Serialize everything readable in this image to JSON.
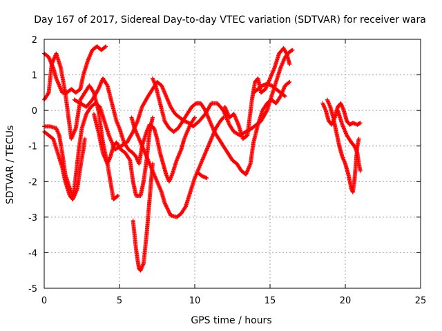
{
  "chart_data": {
    "type": "scatter",
    "title": "Day 167 of 2017, Sidereal Day-to-day VTEC variation (SDTVAR) for receiver wara",
    "xlabel": "GPS time / hours",
    "ylabel": "SDTVAR / TECUs",
    "xlim": [
      0,
      25
    ],
    "ylim": [
      -5,
      2
    ],
    "xticks": [
      "0",
      "5",
      "10",
      "15",
      "20",
      "25"
    ],
    "yticks": [
      "-5",
      "-4",
      "-3",
      "-2",
      "-1",
      "0",
      "1",
      "2"
    ],
    "grid": true,
    "marker": "plus",
    "color": "#ff0000",
    "series": [
      {
        "points": [
          [
            0.0,
            1.6
          ],
          [
            0.3,
            1.5
          ],
          [
            0.6,
            1.2
          ],
          [
            0.8,
            0.9
          ],
          [
            1.0,
            0.7
          ],
          [
            1.2,
            0.5
          ],
          [
            1.5,
            0.5
          ],
          [
            1.8,
            0.6
          ],
          [
            2.1,
            0.5
          ],
          [
            2.4,
            0.6
          ],
          [
            2.6,
            1.0
          ],
          [
            2.9,
            1.4
          ],
          [
            3.2,
            1.7
          ],
          [
            3.5,
            1.8
          ],
          [
            3.8,
            1.7
          ],
          [
            4.1,
            1.8
          ]
        ]
      },
      {
        "points": [
          [
            0.0,
            0.3
          ],
          [
            0.3,
            0.5
          ],
          [
            0.5,
            1.3
          ],
          [
            0.8,
            1.6
          ],
          [
            1.1,
            1.2
          ],
          [
            1.4,
            0.5
          ],
          [
            1.8,
            -0.8
          ],
          [
            2.1,
            -0.5
          ],
          [
            2.4,
            0.3
          ],
          [
            2.7,
            0.5
          ],
          [
            3.0,
            0.7
          ],
          [
            3.3,
            0.5
          ],
          [
            3.6,
            0.0
          ],
          [
            3.9,
            -0.9
          ],
          [
            4.2,
            -1.5
          ],
          [
            4.4,
            -2.0
          ],
          [
            4.6,
            -2.5
          ],
          [
            4.9,
            -2.4
          ]
        ]
      },
      {
        "points": [
          [
            0.0,
            -0.6
          ],
          [
            0.3,
            -0.7
          ],
          [
            0.6,
            -0.8
          ],
          [
            0.9,
            -1.2
          ],
          [
            1.2,
            -1.6
          ],
          [
            1.4,
            -2.0
          ],
          [
            1.7,
            -2.4
          ],
          [
            1.9,
            -2.5
          ],
          [
            2.2,
            -2.2
          ],
          [
            2.4,
            -1.6
          ],
          [
            2.6,
            -1.1
          ],
          [
            2.7,
            -0.8
          ]
        ]
      },
      {
        "points": [
          [
            0.0,
            -0.45
          ],
          [
            0.4,
            -0.45
          ],
          [
            0.8,
            -0.5
          ],
          [
            1.0,
            -0.7
          ],
          [
            1.2,
            -1.2
          ],
          [
            1.4,
            -1.8
          ],
          [
            1.7,
            -2.2
          ],
          [
            1.9,
            -2.4
          ],
          [
            2.0,
            -2.2
          ],
          [
            2.3,
            -1.1
          ],
          [
            2.5,
            -0.5
          ],
          [
            2.8,
            -0.1
          ],
          [
            3.1,
            0.1
          ],
          [
            3.4,
            0.2
          ],
          [
            3.7,
            0.1
          ],
          [
            4.0,
            -0.3
          ],
          [
            4.3,
            -0.7
          ],
          [
            4.7,
            -1.1
          ],
          [
            5.1,
            -1.0
          ],
          [
            5.5,
            -0.9
          ],
          [
            5.9,
            -0.6
          ],
          [
            6.2,
            -0.3
          ],
          [
            6.5,
            0.1
          ],
          [
            6.9,
            0.4
          ],
          [
            7.2,
            0.6
          ],
          [
            7.5,
            0.8
          ],
          [
            7.8,
            0.7
          ],
          [
            8.1,
            0.4
          ],
          [
            8.4,
            0.1
          ],
          [
            8.7,
            -0.1
          ],
          [
            9.0,
            -0.2
          ],
          [
            9.3,
            -0.3
          ],
          [
            9.6,
            -0.35
          ],
          [
            9.9,
            -0.45
          ],
          [
            10.3,
            -0.3
          ],
          [
            10.7,
            -0.1
          ],
          [
            11.1,
            0.2
          ],
          [
            11.5,
            0.2
          ],
          [
            11.9,
            0.0
          ],
          [
            12.3,
            -0.4
          ],
          [
            12.6,
            -0.6
          ],
          [
            13.0,
            -0.7
          ],
          [
            13.4,
            -0.6
          ],
          [
            13.8,
            -0.5
          ],
          [
            14.1,
            -0.4
          ],
          [
            14.4,
            -0.3
          ],
          [
            14.8,
            0.0
          ],
          [
            15.1,
            0.4
          ],
          [
            15.4,
            0.8
          ],
          [
            15.7,
            1.2
          ],
          [
            16.0,
            1.5
          ],
          [
            16.3,
            1.65
          ],
          [
            16.5,
            1.7
          ]
        ]
      },
      {
        "points": [
          [
            2.0,
            0.3
          ],
          [
            2.4,
            0.2
          ],
          [
            2.8,
            0.1
          ],
          [
            3.2,
            0.3
          ],
          [
            3.6,
            0.6
          ],
          [
            3.9,
            0.9
          ],
          [
            4.2,
            0.7
          ],
          [
            4.5,
            0.2
          ],
          [
            4.8,
            -0.3
          ],
          [
            5.0,
            -0.5
          ],
          [
            5.3,
            -0.9
          ],
          [
            5.6,
            -1.1
          ],
          [
            5.9,
            -1.2
          ],
          [
            6.1,
            -1.3
          ],
          [
            6.3,
            -1.5
          ],
          [
            6.5,
            -1.0
          ],
          [
            6.8,
            -0.6
          ],
          [
            7.0,
            -0.4
          ],
          [
            7.3,
            -0.5
          ],
          [
            7.5,
            -0.8
          ],
          [
            7.7,
            -1.2
          ],
          [
            7.9,
            -1.5
          ],
          [
            8.1,
            -1.8
          ],
          [
            8.3,
            -2.0
          ],
          [
            8.5,
            -1.8
          ],
          [
            8.8,
            -1.4
          ],
          [
            9.1,
            -1.1
          ],
          [
            9.3,
            -0.8
          ],
          [
            9.7,
            -0.4
          ],
          [
            10.0,
            -0.2
          ]
        ]
      },
      {
        "points": [
          [
            3.3,
            -0.1
          ],
          [
            3.6,
            -0.6
          ],
          [
            3.9,
            -1.2
          ],
          [
            4.2,
            -1.5
          ],
          [
            4.4,
            -1.3
          ],
          [
            4.6,
            -1.0
          ],
          [
            4.8,
            -0.9
          ],
          [
            5.1,
            -1.1
          ],
          [
            5.4,
            -1.2
          ],
          [
            5.7,
            -1.4
          ],
          [
            5.9,
            -2.0
          ],
          [
            6.1,
            -2.4
          ],
          [
            6.4,
            -2.4
          ],
          [
            6.6,
            -2.0
          ],
          [
            6.8,
            -1.4
          ],
          [
            7.0,
            -0.6
          ],
          [
            7.2,
            -0.2
          ]
        ]
      },
      {
        "points": [
          [
            5.8,
            -0.2
          ],
          [
            6.0,
            -0.5
          ],
          [
            6.2,
            -0.7
          ],
          [
            6.4,
            -0.9
          ],
          [
            6.6,
            -1.1
          ],
          [
            6.8,
            -1.3
          ],
          [
            7.0,
            -1.5
          ],
          [
            7.2,
            -1.7
          ],
          [
            7.4,
            -1.9
          ],
          [
            7.6,
            -2.1
          ],
          [
            7.8,
            -2.3
          ],
          [
            8.0,
            -2.6
          ],
          [
            8.4,
            -2.95
          ],
          [
            8.8,
            -3.0
          ],
          [
            9.1,
            -2.9
          ],
          [
            9.4,
            -2.7
          ],
          [
            9.7,
            -2.3
          ],
          [
            10.0,
            -1.9
          ],
          [
            10.4,
            -1.5
          ],
          [
            10.8,
            -1.1
          ],
          [
            11.1,
            -0.8
          ],
          [
            11.4,
            -0.5
          ],
          [
            11.7,
            -0.3
          ],
          [
            11.9,
            -0.2
          ]
        ]
      },
      {
        "points": [
          [
            5.9,
            -3.1
          ],
          [
            6.0,
            -3.5
          ],
          [
            6.1,
            -3.9
          ],
          [
            6.2,
            -4.2
          ],
          [
            6.3,
            -4.45
          ],
          [
            6.4,
            -4.5
          ],
          [
            6.6,
            -4.3
          ],
          [
            6.7,
            -3.9
          ],
          [
            6.8,
            -3.5
          ],
          [
            6.9,
            -3.0
          ],
          [
            7.0,
            -2.5
          ],
          [
            7.1,
            -2.0
          ],
          [
            7.2,
            -1.5
          ]
        ]
      },
      {
        "points": [
          [
            7.2,
            0.9
          ],
          [
            7.4,
            0.7
          ],
          [
            7.7,
            0.2
          ],
          [
            8.0,
            -0.3
          ],
          [
            8.3,
            -0.5
          ],
          [
            8.6,
            -0.6
          ],
          [
            8.9,
            -0.5
          ],
          [
            9.2,
            -0.3
          ],
          [
            9.5,
            -0.1
          ],
          [
            9.8,
            0.1
          ],
          [
            10.1,
            0.2
          ],
          [
            10.4,
            0.2
          ],
          [
            10.7,
            0.0
          ],
          [
            11.0,
            -0.3
          ],
          [
            11.3,
            -0.6
          ],
          [
            11.6,
            -0.8
          ],
          [
            11.9,
            -1.0
          ],
          [
            12.2,
            -1.2
          ],
          [
            12.5,
            -1.4
          ],
          [
            12.8,
            -1.5
          ],
          [
            13.1,
            -1.7
          ],
          [
            13.4,
            -1.8
          ],
          [
            13.7,
            -1.5
          ],
          [
            13.9,
            -0.9
          ],
          [
            14.2,
            -0.4
          ],
          [
            14.5,
            0.0
          ],
          [
            14.8,
            0.2
          ],
          [
            15.1,
            0.3
          ],
          [
            15.4,
            0.2
          ],
          [
            15.7,
            0.4
          ],
          [
            16.0,
            0.7
          ],
          [
            16.3,
            0.8
          ]
        ]
      },
      {
        "points": [
          [
            10.2,
            -1.75
          ],
          [
            10.5,
            -1.85
          ],
          [
            10.8,
            -1.9
          ]
        ]
      },
      {
        "points": [
          [
            12.0,
            0.1
          ],
          [
            12.3,
            -0.2
          ],
          [
            12.6,
            -0.1
          ],
          [
            12.9,
            -0.4
          ],
          [
            13.2,
            -0.8
          ],
          [
            13.5,
            -0.7
          ],
          [
            13.8,
            0.3
          ],
          [
            14.0,
            0.8
          ],
          [
            14.2,
            0.9
          ],
          [
            14.4,
            0.5
          ],
          [
            14.7,
            0.6
          ],
          [
            15.0,
            0.9
          ],
          [
            15.3,
            1.2
          ],
          [
            15.6,
            1.6
          ],
          [
            15.9,
            1.75
          ],
          [
            16.1,
            1.6
          ],
          [
            16.3,
            1.3
          ]
        ]
      },
      {
        "points": [
          [
            13.9,
            0.5
          ],
          [
            14.2,
            0.6
          ],
          [
            14.5,
            0.7
          ],
          [
            14.8,
            0.75
          ],
          [
            15.1,
            0.7
          ],
          [
            15.4,
            0.6
          ],
          [
            15.7,
            0.5
          ],
          [
            16.0,
            0.4
          ]
        ]
      },
      {
        "points": [
          [
            18.5,
            0.2
          ],
          [
            18.7,
            0.0
          ],
          [
            18.9,
            -0.3
          ],
          [
            19.1,
            -0.4
          ],
          [
            19.3,
            -0.2
          ],
          [
            19.5,
            0.1
          ],
          [
            19.7,
            0.2
          ],
          [
            19.9,
            0.0
          ],
          [
            20.1,
            -0.3
          ],
          [
            20.3,
            -0.4
          ],
          [
            20.5,
            -0.35
          ],
          [
            20.8,
            -0.4
          ],
          [
            21.0,
            -0.35
          ]
        ]
      },
      {
        "points": [
          [
            18.8,
            0.3
          ],
          [
            19.0,
            0.1
          ],
          [
            19.2,
            -0.2
          ],
          [
            19.4,
            -0.6
          ],
          [
            19.6,
            -1.0
          ],
          [
            19.8,
            -1.3
          ],
          [
            20.0,
            -1.5
          ],
          [
            20.2,
            -1.8
          ],
          [
            20.4,
            -2.2
          ],
          [
            20.5,
            -2.3
          ],
          [
            20.6,
            -2.0
          ],
          [
            20.7,
            -1.5
          ],
          [
            20.8,
            -1.0
          ],
          [
            20.9,
            -0.8
          ]
        ]
      },
      {
        "points": [
          [
            19.5,
            0.0
          ],
          [
            19.8,
            -0.4
          ],
          [
            20.1,
            -0.7
          ],
          [
            20.4,
            -0.9
          ],
          [
            20.6,
            -1.0
          ],
          [
            20.8,
            -1.2
          ],
          [
            20.9,
            -1.5
          ],
          [
            21.0,
            -1.7
          ]
        ]
      }
    ]
  }
}
